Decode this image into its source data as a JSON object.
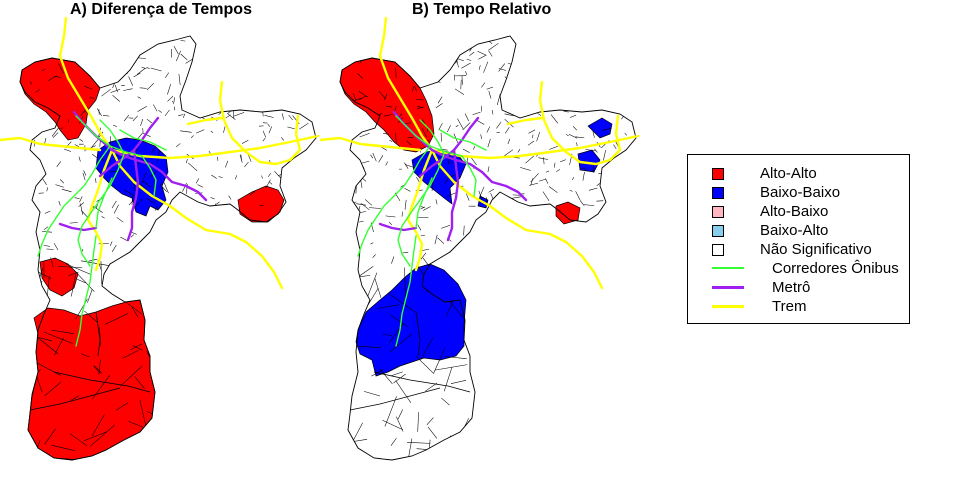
{
  "panels": [
    {
      "title": "A) Diferença de Tempos"
    },
    {
      "title": "B) Tempo Relativo"
    }
  ],
  "legend": {
    "items": [
      {
        "label": "Alto-Alto",
        "kind": "fill",
        "color": "#ff0000"
      },
      {
        "label": "Baixo-Baixo",
        "kind": "fill",
        "color": "#0000ff"
      },
      {
        "label": "Alto-Baixo",
        "kind": "fill",
        "color": "#ffb6c1"
      },
      {
        "label": "Baixo-Alto",
        "kind": "fill",
        "color": "#87ceeb"
      },
      {
        "label": "Não Significativo",
        "kind": "fill",
        "color": "#ffffff"
      },
      {
        "label": "Corredores Ônibus",
        "kind": "line",
        "color": "#33ff33"
      },
      {
        "label": "Metrô",
        "kind": "line",
        "color": "#a020f0"
      },
      {
        "label": "Trem",
        "kind": "line",
        "color": "#ffff00"
      }
    ]
  },
  "colors": {
    "alto_alto": "#ff0000",
    "baixo_baixo": "#0000ff",
    "nao_significativo": "#ffffff",
    "bus": "#33ff33",
    "metro": "#a020f0",
    "train": "#ffff00"
  }
}
